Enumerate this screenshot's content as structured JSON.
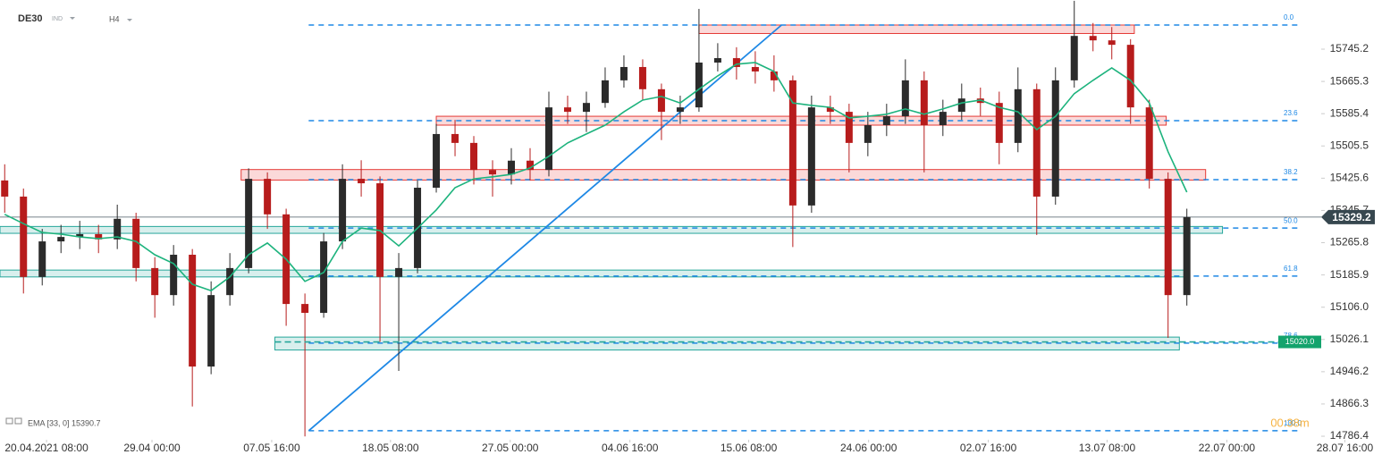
{
  "chart_data": {
    "type": "candlestick",
    "symbol": "DE30",
    "market": "IND",
    "interval": "H4",
    "x": [
      0,
      1,
      2,
      3,
      4,
      5,
      6,
      7,
      8,
      9,
      10,
      11,
      12,
      13,
      14,
      15,
      16,
      17,
      18,
      19,
      20,
      21,
      22,
      23,
      24,
      25,
      26,
      27,
      28,
      29,
      30,
      31,
      32,
      33,
      34,
      35,
      36,
      37,
      38,
      39,
      40,
      41,
      42,
      43,
      44,
      45,
      46,
      47,
      48,
      49,
      50,
      51,
      52,
      53,
      54,
      55,
      56,
      57,
      58,
      59,
      60,
      61,
      62,
      63
    ],
    "open": [
      15420,
      15380,
      15181,
      15269,
      15280,
      15287,
      15274,
      15325,
      15203,
      15136,
      15236,
      14959,
      15136,
      15203,
      15424,
      15336,
      15114,
      15092,
      15269,
      15424,
      15413,
      15181,
      15203,
      15402,
      15535,
      15513,
      15446,
      15435,
      15469,
      15446,
      15601,
      15590,
      15612,
      15668,
      15701,
      15646,
      15590,
      15601,
      15712,
      15723,
      15701,
      15690,
      15668,
      15358,
      15601,
      15590,
      15513,
      15557,
      15579,
      15668,
      15557,
      15590,
      15623,
      15612,
      15513,
      15646,
      15380,
      15668,
      15778,
      15767,
      15756,
      15601,
      15424,
      15136
    ],
    "high": [
      15460,
      15400,
      15300,
      15310,
      15320,
      15310,
      15360,
      15340,
      15230,
      15260,
      15250,
      15170,
      15240,
      15450,
      15440,
      15350,
      15140,
      15290,
      15460,
      15470,
      15430,
      15240,
      15420,
      15560,
      15570,
      15530,
      15470,
      15500,
      15500,
      15640,
      15630,
      15640,
      15700,
      15730,
      15720,
      15660,
      15630,
      15845,
      15760,
      15750,
      15740,
      15730,
      15680,
      15630,
      15630,
      15610,
      15590,
      15610,
      15720,
      15690,
      15620,
      15660,
      15650,
      15640,
      15700,
      15660,
      15700,
      15865,
      15810,
      15800,
      15770,
      15620,
      15440,
      15350
    ],
    "low": [
      15340,
      15140,
      15160,
      15240,
      15250,
      15240,
      15250,
      15170,
      15080,
      15110,
      14860,
      14940,
      15110,
      15190,
      15300,
      15060,
      14786,
      15080,
      15250,
      15380,
      15020,
      14948,
      15190,
      15390,
      15480,
      15410,
      15380,
      15410,
      15420,
      15430,
      15560,
      15540,
      15600,
      15650,
      15620,
      15520,
      15560,
      15590,
      15690,
      15670,
      15660,
      15640,
      15255,
      15340,
      15560,
      15440,
      15480,
      15530,
      15560,
      15440,
      15530,
      15570,
      15580,
      15460,
      15490,
      15285,
      15360,
      15650,
      15740,
      15720,
      15560,
      15400,
      15030,
      15110
    ],
    "close": [
      15380,
      15181,
      15269,
      15280,
      15287,
      15274,
      15325,
      15203,
      15136,
      15236,
      14959,
      15136,
      15203,
      15424,
      15336,
      15114,
      15092,
      15269,
      15424,
      15413,
      15181,
      15203,
      15402,
      15535,
      15513,
      15446,
      15435,
      15469,
      15446,
      15601,
      15590,
      15612,
      15668,
      15701,
      15646,
      15590,
      15601,
      15712,
      15723,
      15701,
      15690,
      15668,
      15358,
      15601,
      15590,
      15513,
      15557,
      15579,
      15668,
      15557,
      15590,
      15623,
      15612,
      15513,
      15646,
      15380,
      15668,
      15778,
      15767,
      15756,
      15601,
      15424,
      15136,
      15329.2
    ],
    "bull_color": "#2b2b2b",
    "bear_color": "#b71c1c",
    "ema": {
      "label": "EMA [33, 0] 15390.7",
      "color": "#1db37d",
      "values": [
        15336,
        15313,
        15291,
        15287,
        15280,
        15276,
        15280,
        15269,
        15236,
        15214,
        15163,
        15147,
        15181,
        15236,
        15265,
        15225,
        15170,
        15192,
        15269,
        15302,
        15296,
        15258,
        15302,
        15347,
        15402,
        15424,
        15429,
        15435,
        15451,
        15480,
        15513,
        15535,
        15557,
        15590,
        15619,
        15628,
        15612,
        15646,
        15679,
        15708,
        15712,
        15690,
        15612,
        15606,
        15601,
        15575,
        15579,
        15584,
        15597,
        15584,
        15597,
        15612,
        15619,
        15601,
        15590,
        15546,
        15579,
        15635,
        15668,
        15699,
        15668,
        15612,
        15491,
        15391
      ]
    },
    "fib_color": "#1e88e5",
    "fib_start": 16.2,
    "fib_levels": [
      {
        "label": "0.0",
        "value": 15805
      },
      {
        "label": "23.6",
        "value": 15568
      },
      {
        "label": "38.2",
        "value": 15422
      },
      {
        "label": "50.0",
        "value": 15302
      },
      {
        "label": "61.8",
        "value": 15183
      },
      {
        "label": "78.6",
        "value": 15017
      },
      {
        "label": "100.0",
        "value": 14800
      }
    ],
    "zones": [
      {
        "kind": "resistance",
        "x": [
          37,
          60.2
        ],
        "y": [
          15784,
          15805
        ]
      },
      {
        "kind": "resistance",
        "x": [
          23,
          61.9
        ],
        "y": [
          15557,
          15579
        ]
      },
      {
        "kind": "resistance",
        "x": [
          12.6,
          64
        ],
        "y": [
          15421,
          15447
        ]
      },
      {
        "kind": "support",
        "x": [
          -0.25,
          64.9
        ],
        "y": [
          15289,
          15306
        ]
      },
      {
        "kind": "support",
        "x": [
          -0.25,
          63
        ],
        "y": [
          15181,
          15198
        ]
      },
      {
        "kind": "support",
        "x": [
          14.4,
          62.6
        ],
        "y": [
          15000,
          15032
        ]
      }
    ],
    "trendline": {
      "x": [
        16.2,
        41.4
      ],
      "y": [
        14800,
        15805
      ],
      "color": "#1e88e5"
    },
    "alert_line": {
      "value": 15020,
      "label": "15020.0",
      "color": "#26a69a"
    },
    "last_price": {
      "value": 15329.2
    },
    "timer": "00:38m",
    "xlim": [
      -0.25,
      73.4
    ],
    "ylim": [
      14771,
      15867
    ],
    "yticks": [
      15745.2,
      15665.3,
      15585.4,
      15505.5,
      15425.6,
      15345.7,
      15265.8,
      15185.9,
      {
        "value": 15106.0,
        "label": "15106.0"
      },
      15026.1,
      14946.2,
      14866.3,
      14786.4
    ],
    "xticks": [
      {
        "value": 2.23,
        "label": "20.04.2021 08:00"
      },
      {
        "value": 7.85,
        "label": "29.04 00:00"
      },
      {
        "value": 14.23,
        "label": "07.05 16:00"
      },
      {
        "value": 20.56,
        "label": "18.05 08:00"
      },
      {
        "value": 26.94,
        "label": "27.05 00:00"
      },
      {
        "value": 33.32,
        "label": "04.06 16:00"
      },
      {
        "value": 39.65,
        "label": "15.06 08:00"
      },
      {
        "value": 46.04,
        "label": "24.06 00:00"
      },
      {
        "value": 52.42,
        "label": "02.07 16:00"
      },
      {
        "value": 58.75,
        "label": "13.07 08:00"
      },
      {
        "value": 65.13,
        "label": "22.07 00:00"
      },
      {
        "value": 71.42,
        "label": "28.07 16:00"
      }
    ],
    "grid": false
  }
}
